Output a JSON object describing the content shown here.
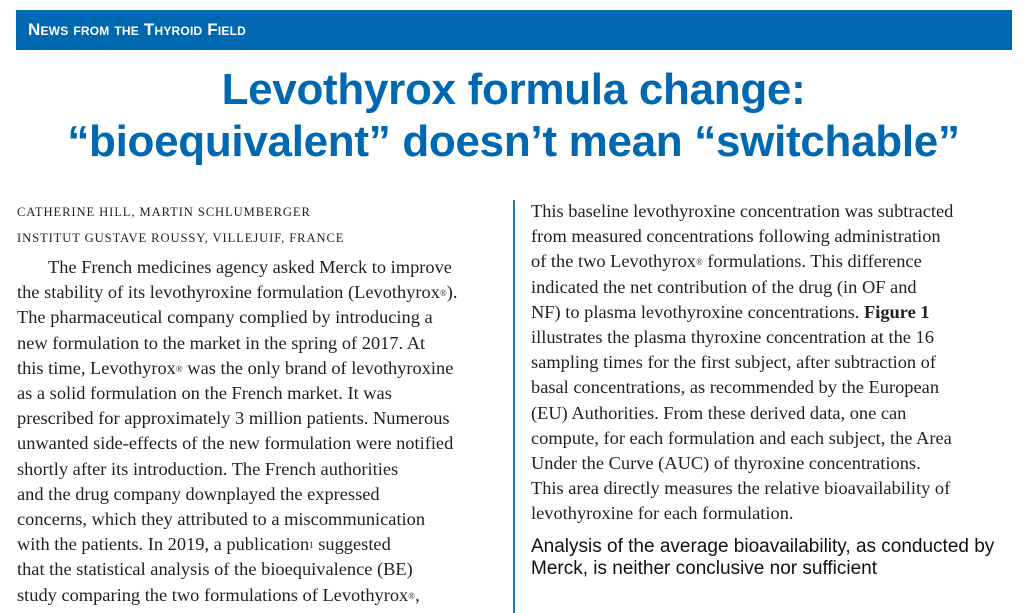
{
  "header": {
    "section_banner": "News from the Thyroid Field"
  },
  "article": {
    "title_line_1": "Levothyrox formula change:",
    "title_line_2": "“bioequivalent” doesn’t mean “switchable”",
    "authors": "Catherine Hill, Martin Schlumberger",
    "affiliation": "Institut Gustave Roussy, Villejuif, France",
    "left_column": {
      "lines": [
        "The French medicines agency asked Merck to improve",
        "the stability of its levothyroxine formulation (Levothyrox",
        "The pharmaceutical company complied by introducing a",
        "new formulation to the market in the spring of 2017. At",
        "this time, Levothyrox",
        "as a solid formulation on the French market. It was",
        "prescribed for approximately 3 million patients. Numerous",
        "unwanted side-effects of the new formulation were notified",
        "shortly after its introduction. The French authorities",
        "and the drug company downplayed the expressed",
        "concerns, which they attributed to a miscommunication",
        "with the patients. In 2019, a publication",
        "that the statistical analysis of the bioequivalence (BE)",
        "study comparing the two formulations of Levothyrox"
      ],
      "fragments": {
        "line2_end": ").",
        "line5_end": " was the only brand of levothyroxine",
        "line12_ref": "1",
        "line12_end": " suggested",
        "line14_end": ","
      }
    },
    "right_column": {
      "lines": [
        "This baseline levothyroxine concentration was subtracted",
        "from measured concentrations following administration",
        "of the two Levothyrox",
        "indicated the net contribution of the drug (in OF and",
        "NF) to plasma levothyroxine concentrations. ",
        "illustrates the plasma thyroxine concentration at the 16",
        "sampling times for the first subject, after subtraction of",
        "basal concentrations, as recommended by the European",
        "(EU) Authorities. From these derived data, one can",
        "compute, for each formulation and each subject, the Area",
        "Under the Curve (AUC) of thyroxine concentrations.",
        "This area directly measures the relative bioavailability of",
        "levothyroxine for each formulation."
      ],
      "fragments": {
        "line3_end": " formulations. This difference",
        "figure_ref": "Figure 1"
      },
      "subheading": "Analysis of the average bioavailability, as conducted by Merck, is neither conclusive nor sufficient"
    },
    "registered_mark": "®"
  },
  "colors": {
    "brand_blue": "#0067b1",
    "text": "#231f20",
    "divider": "#1d7ac2"
  }
}
